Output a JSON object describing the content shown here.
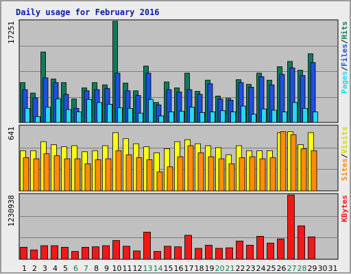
{
  "window": {
    "title": "Daily usage for February 2016"
  },
  "chart_data": {
    "type": "bar",
    "title": "Daily usage for February 2016",
    "x": [
      1,
      2,
      3,
      4,
      5,
      6,
      7,
      8,
      9,
      10,
      11,
      12,
      13,
      14,
      15,
      16,
      17,
      18,
      19,
      20,
      21,
      22,
      23,
      24,
      25,
      26,
      27,
      28,
      29,
      30,
      31
    ],
    "weekend_days": [
      6,
      7,
      13,
      14,
      20,
      21,
      27,
      28
    ],
    "panels": [
      {
        "name": "requests",
        "y_max_label": "17251",
        "ylim": [
          0,
          17251
        ],
        "legend": [
          "Pages",
          "/",
          "Files",
          "/",
          "Hits"
        ],
        "series": [
          {
            "name": "Hits",
            "color": "#0f7a5c",
            "values": [
              6800,
              5000,
              12000,
              7400,
              6800,
              4000,
              5900,
              6800,
              6400,
              17251,
              6700,
              5400,
              9600,
              3400,
              6900,
              5900,
              8400,
              5300,
              7200,
              4500,
              4100,
              7300,
              6500,
              8400,
              7200,
              9500,
              10400,
              8900,
              11700,
              null,
              null
            ]
          },
          {
            "name": "Files",
            "color": "#1f4fe0",
            "values": [
              5600,
              4200,
              7600,
              6800,
              4800,
              2400,
              5400,
              5600,
              5800,
              8400,
              5400,
              4600,
              8400,
              3000,
              5600,
              5200,
              5600,
              4800,
              6600,
              4000,
              3800,
              6800,
              6000,
              7800,
              6400,
              8200,
              9300,
              8000,
              10200,
              null,
              null
            ]
          },
          {
            "name": "Pages",
            "color": "#28d8ef",
            "values": [
              2400,
              1000,
              2600,
              4000,
              2200,
              1800,
              3900,
              3400,
              3100,
              2500,
              2400,
              1600,
              3900,
              1100,
              1800,
              1900,
              2600,
              1700,
              1800,
              2000,
              1800,
              2800,
              1400,
              2300,
              2100,
              1800,
              3400,
              2400,
              1800,
              null,
              null
            ]
          }
        ]
      },
      {
        "name": "visits",
        "y_max_label": "641",
        "ylim": [
          0,
          641
        ],
        "legend": [
          "Sites",
          "/",
          "Visits"
        ],
        "series": [
          {
            "name": "Visits",
            "color": "#ffff12",
            "values": [
              400,
              400,
              490,
              460,
              440,
              450,
              390,
              400,
              450,
              580,
              520,
              470,
              440,
              380,
              420,
              490,
              510,
              470,
              450,
              430,
              360,
              450,
              400,
              400,
              400,
              580,
              590,
              460,
              580,
              null,
              null
            ]
          },
          {
            "name": "Sites",
            "color": "#ff8c0a",
            "values": [
              330,
              320,
              370,
              350,
              320,
              320,
              270,
              310,
              320,
              400,
              360,
              330,
              310,
              190,
              240,
              340,
              450,
              380,
              340,
              320,
              270,
              330,
              340,
              320,
              330,
              590,
              560,
              420,
              400,
              null,
              null
            ]
          }
        ]
      },
      {
        "name": "volume",
        "y_max_label": "1230938",
        "ylim": [
          0,
          1230938
        ],
        "legend": [
          "KBytes"
        ],
        "series": [
          {
            "name": "KBytes",
            "color": "#f01818",
            "values": [
              230000,
              180000,
              260000,
              260000,
              230000,
              150000,
              230000,
              240000,
              260000,
              360000,
              250000,
              160000,
              520000,
              150000,
              250000,
              240000,
              460000,
              210000,
              270000,
              210000,
              220000,
              350000,
              270000,
              440000,
              310000,
              390000,
              1230938,
              640000,
              430000,
              null,
              null
            ]
          }
        ]
      }
    ]
  }
}
